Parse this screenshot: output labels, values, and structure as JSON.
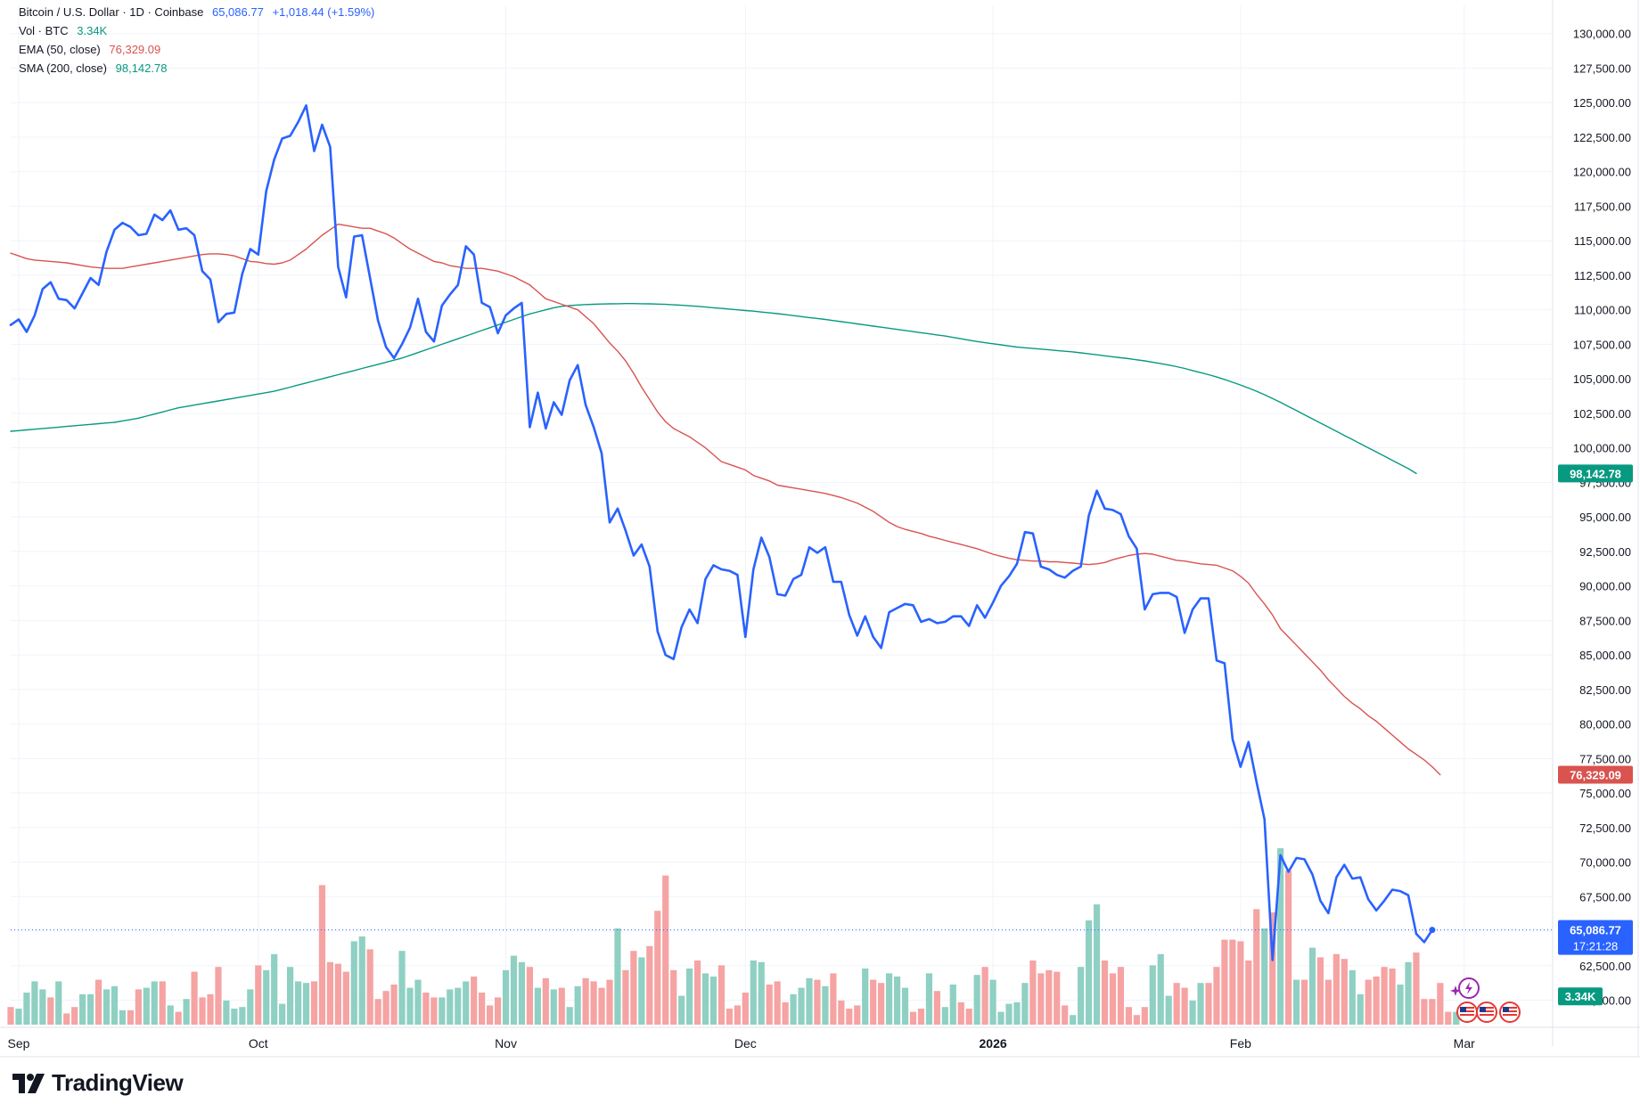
{
  "header": {
    "symbol": "Bitcoin / U.S. Dollar · 1D · Coinbase",
    "last_price": "65,086.77",
    "change": "+1,018.44 (+1.59%)"
  },
  "legend": {
    "volume_label": "Vol · BTC",
    "volume_value": "3.34K",
    "ema_label": "EMA (50, close)",
    "ema_value": "76,329.09",
    "sma_label": "SMA (200, close)",
    "sma_value": "98,142.78"
  },
  "badges": {
    "sma": "98,142.78",
    "ema": "76,329.09",
    "price": "65,086.77",
    "countdown": "17:21:28",
    "volume": "3.34K"
  },
  "colors": {
    "price_line": "#2962ff",
    "price_text": "#2962ff",
    "ema": "#d9534f",
    "sma": "#089981",
    "volume_up": "#8fd0c3",
    "volume_down": "#f5a3a3",
    "grid": "#f0f3fa",
    "axis_text": "#131722"
  },
  "brand": {
    "name": "TradingView"
  },
  "chart_data": {
    "type": "line",
    "y_axis_position": "right",
    "ylim": [
      59000,
      130500
    ],
    "y_ticks": [
      60000,
      62500,
      65000,
      67500,
      70000,
      72500,
      75000,
      77500,
      80000,
      82500,
      85000,
      87500,
      90000,
      92500,
      95000,
      97500,
      100000,
      102500,
      105000,
      107500,
      110000,
      112500,
      115000,
      117500,
      120000,
      122500,
      125000,
      127500,
      130000
    ],
    "y_tick_labels": [
      "60,000.00",
      "62,500.00",
      "65,000.00",
      "67,500.00",
      "70,000.00",
      "72,500.00",
      "75,000.00",
      "77,500.00",
      "80,000.00",
      "82,500.00",
      "85,000.00",
      "87,500.00",
      "90,000.00",
      "92,500.00",
      "95,000.00",
      "97,500.00",
      "100,000.00",
      "102,500.00",
      "105,000.00",
      "107,500.00",
      "110,000.00",
      "112,500.00",
      "115,000.00",
      "117,500.00",
      "120,000.00",
      "122,500.00",
      "125,000.00",
      "127,500.00",
      "130,000.00"
    ],
    "x_axis_labels": [
      {
        "label": "Sep",
        "index": 1,
        "bold": false
      },
      {
        "label": "Oct",
        "index": 31,
        "bold": false
      },
      {
        "label": "Nov",
        "index": 62,
        "bold": false
      },
      {
        "label": "Dec",
        "index": 92,
        "bold": false
      },
      {
        "label": "2026",
        "index": 123,
        "bold": true
      },
      {
        "label": "Feb",
        "index": 154,
        "bold": false
      },
      {
        "label": "Mar",
        "index": 182,
        "bold": false
      }
    ],
    "grid": true,
    "legend_position": "top-left",
    "last_close": 65086.77,
    "series": [
      {
        "key": "close",
        "values": [
          108900,
          109300,
          108400,
          109600,
          111500,
          112000,
          110800,
          110700,
          110100,
          111200,
          112300,
          111800,
          114200,
          115800,
          116300,
          116000,
          115400,
          115500,
          116900,
          116500,
          117200,
          115800,
          115900,
          115400,
          112800,
          112200,
          109100,
          109700,
          109800,
          112600,
          114400,
          114000,
          118600,
          120900,
          122400,
          122600,
          123600,
          124800,
          121500,
          123400,
          121800,
          113100,
          110900,
          115300,
          115400,
          112300,
          109200,
          107300,
          106500,
          107500,
          108700,
          110800,
          108400,
          107700,
          110300,
          111100,
          111800,
          114600,
          114000,
          110500,
          110200,
          108300,
          109600,
          110100,
          110500,
          101500,
          104000,
          101400,
          103300,
          102400,
          104900,
          106000,
          103100,
          101500,
          99600,
          94600,
          95600,
          94000,
          92200,
          93000,
          91400,
          86700,
          85000,
          84700,
          87000,
          88300,
          87300,
          90500,
          91500,
          91200,
          91100,
          90800,
          86300,
          91200,
          93500,
          92100,
          89400,
          89300,
          90500,
          90800,
          92800,
          92400,
          92800,
          90300,
          90300,
          87900,
          86400,
          87800,
          86300,
          85500,
          88100,
          88400,
          88700,
          88600,
          87400,
          87600,
          87300,
          87400,
          87800,
          87800,
          87100,
          88600,
          87700,
          88800,
          90000,
          90700,
          91600,
          93900,
          93800,
          91400,
          91200,
          90800,
          90600,
          91100,
          91400,
          95100,
          96900,
          95600,
          95500,
          95200,
          93600,
          92700,
          88300,
          89400,
          89500,
          89500,
          89200,
          86600,
          88300,
          89100,
          89100,
          84600,
          84400,
          78900,
          76900,
          78700,
          75800,
          73100,
          62900,
          70500,
          69300,
          70300,
          70200,
          69100,
          67200,
          66300,
          68900,
          69800,
          68800,
          68900,
          67300,
          66500,
          67200,
          68000,
          67900,
          67600,
          64800,
          64200,
          65086.77
        ]
      },
      {
        "key": "ema50",
        "name": "EMA (50, close)",
        "values": [
          114100,
          113900,
          113700,
          113600,
          113550,
          113500,
          113450,
          113400,
          113300,
          113200,
          113100,
          113050,
          113000,
          113000,
          113000,
          113100,
          113200,
          113300,
          113400,
          113500,
          113600,
          113700,
          113800,
          113900,
          114000,
          114050,
          114050,
          114000,
          113900,
          113700,
          113500,
          113450,
          113350,
          113300,
          113400,
          113600,
          114000,
          114400,
          114900,
          115400,
          115800,
          116200,
          116100,
          116000,
          115900,
          115900,
          115700,
          115500,
          115200,
          114800,
          114400,
          114100,
          113800,
          113500,
          113400,
          113200,
          113100,
          113000,
          113000,
          113000,
          112900,
          112800,
          112600,
          112400,
          112100,
          111800,
          111300,
          110800,
          110600,
          110400,
          110200,
          110000,
          109500,
          109000,
          108300,
          107600,
          107000,
          106300,
          105400,
          104400,
          103500,
          102600,
          101900,
          101400,
          101100,
          100800,
          100400,
          100000,
          99500,
          99000,
          98800,
          98600,
          98400,
          98000,
          97800,
          97600,
          97300,
          97200,
          97100,
          97000,
          96900,
          96800,
          96700,
          96550,
          96400,
          96200,
          96000,
          95700,
          95400,
          95000,
          94600,
          94300,
          94100,
          93950,
          93800,
          93600,
          93450,
          93300,
          93150,
          93000,
          92850,
          92700,
          92500,
          92300,
          92150,
          92000,
          91900,
          91850,
          91800,
          91800,
          91750,
          91750,
          91700,
          91650,
          91600,
          91550,
          91600,
          91700,
          91900,
          92050,
          92200,
          92300,
          92350,
          92300,
          92150,
          92000,
          91850,
          91800,
          91700,
          91600,
          91550,
          91500,
          91300,
          91100,
          90700,
          90200,
          89400,
          88700,
          87900,
          86900,
          86300,
          85700,
          85100,
          84500,
          83900,
          83200,
          82600,
          82000,
          81500,
          81100,
          80600,
          80200,
          79700,
          79200,
          78700,
          78200,
          77800,
          77400,
          76900,
          76329.09
        ]
      },
      {
        "key": "sma200",
        "name": "SMA (200, close)",
        "values": [
          101200,
          101250,
          101300,
          101350,
          101400,
          101450,
          101500,
          101550,
          101600,
          101650,
          101700,
          101750,
          101800,
          101850,
          101950,
          102050,
          102150,
          102300,
          102450,
          102600,
          102750,
          102900,
          103000,
          103100,
          103200,
          103300,
          103400,
          103500,
          103600,
          103700,
          103800,
          103900,
          104000,
          104100,
          104250,
          104400,
          104550,
          104700,
          104850,
          105000,
          105150,
          105300,
          105450,
          105600,
          105750,
          105900,
          106050,
          106200,
          106350,
          106500,
          106700,
          106900,
          107100,
          107300,
          107500,
          107700,
          107900,
          108100,
          108300,
          108500,
          108700,
          108900,
          109100,
          109300,
          109500,
          109700,
          109850,
          110000,
          110150,
          110250,
          110300,
          110350,
          110380,
          110400,
          110420,
          110430,
          110440,
          110450,
          110450,
          110440,
          110430,
          110410,
          110390,
          110360,
          110330,
          110290,
          110250,
          110200,
          110150,
          110100,
          110050,
          110000,
          109950,
          109900,
          109840,
          109780,
          109720,
          109650,
          109580,
          109510,
          109440,
          109370,
          109300,
          109220,
          109140,
          109060,
          108980,
          108900,
          108820,
          108740,
          108660,
          108580,
          108500,
          108420,
          108340,
          108260,
          108180,
          108100,
          108000,
          107900,
          107800,
          107700,
          107620,
          107540,
          107460,
          107380,
          107300,
          107250,
          107200,
          107150,
          107100,
          107050,
          107000,
          106950,
          106880,
          106810,
          106740,
          106670,
          106600,
          106530,
          106460,
          106380,
          106300,
          106200,
          106100,
          106000,
          105880,
          105750,
          105600,
          105450,
          105300,
          105130,
          104950,
          104750,
          104550,
          104330,
          104100,
          103850,
          103580,
          103300,
          103000,
          102700,
          102400,
          102100,
          101800,
          101500,
          101200,
          100900,
          100600,
          100300,
          100000,
          99700,
          99400,
          99100,
          98800,
          98500,
          98142.78
        ]
      },
      {
        "key": "volume",
        "values": [
          11,
          10,
          20,
          27,
          22,
          17,
          27,
          7,
          11,
          19,
          19,
          28,
          22,
          24,
          9,
          9,
          22,
          23,
          27,
          27,
          12,
          8,
          16,
          33,
          17,
          19,
          36,
          15,
          10,
          11,
          22,
          37,
          34,
          44,
          13,
          36,
          27,
          26,
          27,
          87,
          39,
          38,
          33,
          52,
          55,
          47,
          16,
          21,
          25,
          46,
          23,
          28,
          20,
          17,
          17,
          22,
          23,
          27,
          30,
          20,
          12,
          17,
          34,
          43,
          39,
          36,
          23,
          29,
          22,
          23,
          11,
          24,
          29,
          27,
          23,
          28,
          60,
          34,
          46,
          42,
          49,
          71,
          93,
          34,
          18,
          35,
          40,
          32,
          30,
          37,
          10,
          12,
          20,
          40,
          39,
          25,
          27,
          14,
          19,
          23,
          29,
          28,
          24,
          32,
          15,
          10,
          12,
          35,
          28,
          26,
          32,
          30,
          23,
          8,
          10,
          32,
          21,
          11,
          25,
          14,
          10,
          31,
          36,
          28,
          8,
          13,
          14,
          26,
          40,
          32,
          34,
          33,
          12,
          6,
          36,
          65,
          75,
          40,
          32,
          36,
          11,
          6,
          11,
          37,
          44,
          18,
          26,
          23,
          15,
          26,
          26,
          36,
          53,
          53,
          52,
          40,
          72,
          60,
          70,
          110,
          96,
          28,
          28,
          48,
          42,
          28,
          44,
          41,
          34,
          19,
          28,
          30,
          36,
          35,
          25,
          39,
          45,
          16,
          16,
          26,
          8,
          8
        ],
        "direction": [
          0,
          1,
          1,
          1,
          1,
          0,
          1,
          0,
          0,
          1,
          1,
          0,
          1,
          1,
          1,
          0,
          0,
          1,
          1,
          0,
          1,
          0,
          1,
          0,
          0,
          0,
          0,
          1,
          1,
          1,
          1,
          0,
          1,
          1,
          1,
          1,
          1,
          1,
          0,
          0,
          0,
          0,
          0,
          1,
          1,
          0,
          0,
          0,
          0,
          1,
          1,
          1,
          0,
          0,
          1,
          1,
          1,
          1,
          0,
          0,
          0,
          0,
          1,
          1,
          1,
          0,
          1,
          0,
          1,
          0,
          1,
          1,
          0,
          0,
          0,
          0,
          1,
          0,
          0,
          1,
          0,
          0,
          0,
          0,
          1,
          1,
          0,
          1,
          1,
          0,
          0,
          0,
          0,
          1,
          1,
          0,
          0,
          0,
          1,
          1,
          1,
          0,
          1,
          0,
          0,
          0,
          0,
          1,
          0,
          0,
          1,
          1,
          1,
          0,
          0,
          1,
          0,
          1,
          1,
          0,
          0,
          1,
          0,
          1,
          1,
          1,
          1,
          1,
          0,
          0,
          0,
          0,
          0,
          1,
          1,
          1,
          1,
          0,
          0,
          0,
          0,
          0,
          0,
          1,
          1,
          1,
          0,
          0,
          1,
          1,
          0,
          0,
          0,
          0,
          0,
          0,
          0,
          1,
          0,
          1,
          0,
          1,
          0,
          1,
          0,
          0,
          0,
          0,
          1,
          1,
          0,
          0,
          0,
          0,
          1,
          1,
          0,
          0,
          0,
          0,
          0,
          1
        ]
      }
    ]
  }
}
